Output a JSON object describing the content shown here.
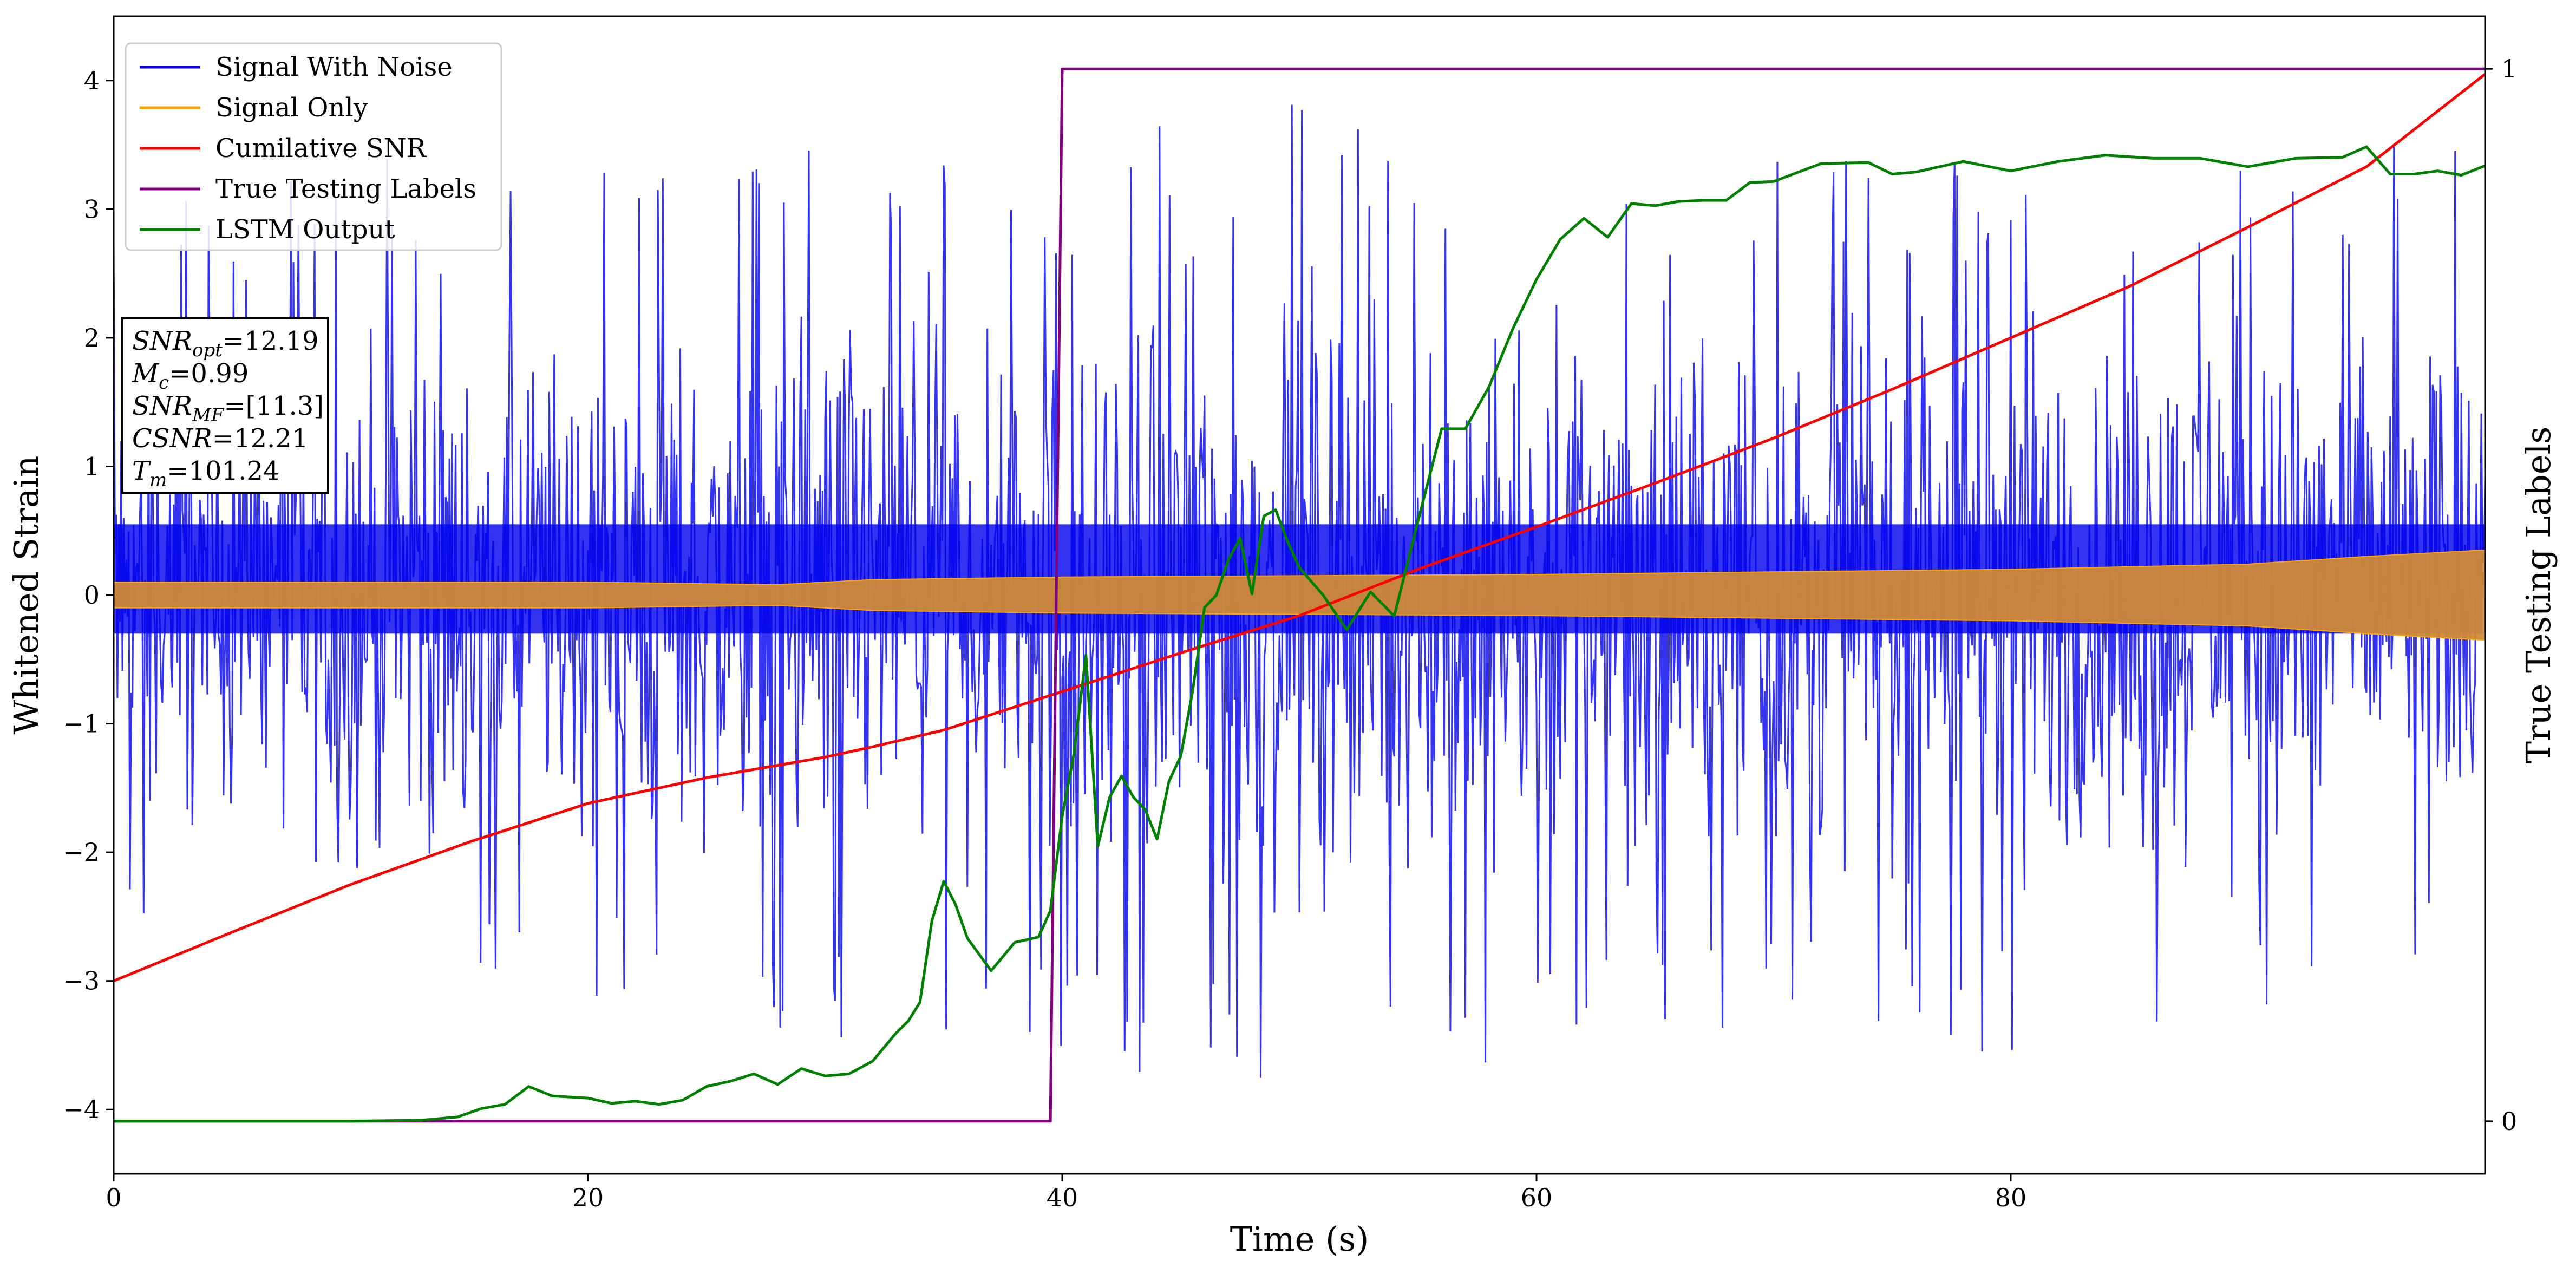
{
  "chart_data": {
    "type": "line",
    "xlabel": "Time (s)",
    "ylabel": "Whitened Strain",
    "ylabel_right": "True Testing Labels",
    "xlim": [
      0,
      100
    ],
    "ylim": [
      -4.5,
      4.5
    ],
    "ylim_right": [
      -0.05,
      1.05
    ],
    "x_ticks": [
      0,
      20,
      40,
      60,
      80
    ],
    "x_tick_labels": [
      "0",
      "20",
      "40",
      "60",
      "80"
    ],
    "y_ticks": [
      -4,
      -3,
      -2,
      -1,
      0,
      1,
      2,
      3,
      4
    ],
    "y_tick_labels": [
      "−4",
      "−3",
      "−2",
      "−1",
      "0",
      "1",
      "2",
      "3",
      "4"
    ],
    "y_ticks_right": [
      0,
      1
    ],
    "y_tick_labels_right": [
      "0",
      "1"
    ],
    "grid": false,
    "legend_position": "top-left",
    "series": [
      {
        "name": "Signal With Noise",
        "color": "#0000ee",
        "kind": "noise",
        "envelope": {
          "x": [
            0,
            10,
            20,
            30,
            40,
            50,
            60,
            70,
            80,
            90,
            100
          ],
          "upper": [
            3.0,
            3.5,
            3.3,
            3.6,
            3.5,
            4.0,
            3.5,
            3.4,
            3.4,
            3.5,
            3.5
          ],
          "lower": [
            -3.0,
            -3.4,
            -3.3,
            -3.6,
            -3.6,
            -4.0,
            -3.6,
            -3.3,
            -3.6,
            -3.6,
            -3.0
          ]
        },
        "band": {
          "upper": 0.55,
          "lower": -0.3
        }
      },
      {
        "name": "Signal Only",
        "color": "#ffa500",
        "kind": "band",
        "x": [
          0,
          10,
          20,
          28,
          32,
          40,
          60,
          80,
          90,
          95,
          100
        ],
        "amplitude": [
          0.1,
          0.1,
          0.1,
          0.08,
          0.12,
          0.14,
          0.16,
          0.2,
          0.24,
          0.3,
          0.35
        ]
      },
      {
        "name": "Cumilative SNR",
        "color": "#ff0000",
        "axis": "left",
        "x": [
          0,
          5,
          10,
          15,
          20,
          25,
          30,
          32,
          35,
          40,
          45,
          50,
          55,
          60,
          65,
          70,
          75,
          80,
          85,
          90,
          95,
          100
        ],
        "y": [
          -3.0,
          -2.62,
          -2.25,
          -1.92,
          -1.62,
          -1.42,
          -1.26,
          -1.18,
          -1.05,
          -0.75,
          -0.45,
          -0.16,
          0.2,
          0.53,
          0.87,
          1.22,
          1.6,
          2.0,
          2.4,
          2.86,
          3.33,
          4.05
        ]
      },
      {
        "name": "True Testing Labels",
        "color": "#800080",
        "axis": "right",
        "x": [
          0,
          39.5,
          40,
          100
        ],
        "y": [
          0,
          0,
          1,
          1
        ]
      },
      {
        "name": "LSTM Output",
        "color": "#008000",
        "axis": "right",
        "x": [
          0,
          10,
          13,
          14.5,
          15.5,
          16.5,
          17.5,
          18.5,
          20,
          21,
          22,
          23,
          24,
          25,
          26,
          27,
          28,
          29,
          30,
          31,
          32,
          33,
          33.5,
          34,
          34.5,
          35,
          35.5,
          36,
          37,
          38,
          39,
          39.5,
          40,
          40.5,
          41,
          41.5,
          42,
          42.5,
          43,
          43.5,
          44,
          44.5,
          45,
          45.5,
          46,
          46.5,
          47,
          47.5,
          48,
          48.5,
          49,
          49.5,
          50,
          51,
          52,
          53,
          54,
          55,
          56,
          57,
          58,
          59,
          60,
          61,
          62,
          63,
          64,
          65,
          66,
          67,
          68,
          69,
          70,
          72,
          74,
          75,
          76,
          78,
          80,
          82,
          84,
          86,
          88,
          90,
          92,
          94,
          95,
          96,
          97,
          98,
          99,
          100
        ],
        "y": [
          0,
          0,
          0.001,
          0.004,
          0.012,
          0.016,
          0.033,
          0.024,
          0.022,
          0.017,
          0.019,
          0.016,
          0.02,
          0.033,
          0.038,
          0.045,
          0.035,
          0.05,
          0.043,
          0.045,
          0.057,
          0.084,
          0.095,
          0.113,
          0.19,
          0.228,
          0.206,
          0.174,
          0.143,
          0.17,
          0.175,
          0.2,
          0.29,
          0.35,
          0.443,
          0.261,
          0.308,
          0.328,
          0.308,
          0.296,
          0.268,
          0.323,
          0.347,
          0.409,
          0.488,
          0.5,
          0.533,
          0.554,
          0.501,
          0.575,
          0.581,
          0.551,
          0.526,
          0.5,
          0.467,
          0.503,
          0.48,
          0.57,
          0.658,
          0.658,
          0.698,
          0.753,
          0.8,
          0.838,
          0.858,
          0.84,
          0.872,
          0.87,
          0.874,
          0.875,
          0.875,
          0.892,
          0.893,
          0.91,
          0.911,
          0.9,
          0.902,
          0.912,
          0.903,
          0.912,
          0.918,
          0.915,
          0.915,
          0.907,
          0.915,
          0.916,
          0.926,
          0.9,
          0.9,
          0.903,
          0.899,
          0.908
        ]
      }
    ],
    "info_box": {
      "lines": [
        {
          "var": "SNR",
          "sub": "opt",
          "value": "=12.19"
        },
        {
          "var": "M",
          "sub": "c",
          "value": "=0.99"
        },
        {
          "var": "SNR",
          "sub": "MF",
          "value": "=[11.3]"
        },
        {
          "var": "CSNR",
          "sub": "",
          "value": "=12.21"
        },
        {
          "var": "T",
          "sub": "m",
          "value": "=101.24"
        }
      ]
    }
  }
}
